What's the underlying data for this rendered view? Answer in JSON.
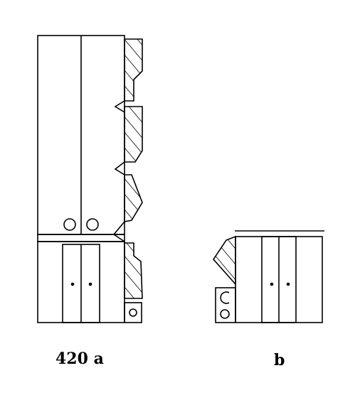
{
  "figure": {
    "labels": {
      "a": "420 a",
      "b": "b"
    },
    "line_color": "#000000",
    "background": "#ffffff"
  }
}
